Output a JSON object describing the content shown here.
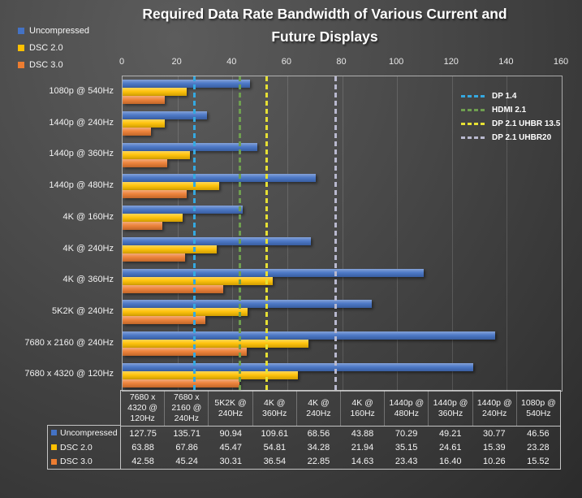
{
  "title": {
    "line1": "Required Data Rate Bandwidth of Various Current and",
    "line2": "Future Displays"
  },
  "series_legend": [
    {
      "label": "Uncompressed",
      "color": "#4472C4"
    },
    {
      "label": "DSC 2.0",
      "color": "#FFC000"
    },
    {
      "label": "DSC 3.0",
      "color": "#ED7D31"
    }
  ],
  "axis": {
    "ticks": [
      "0",
      "20",
      "40",
      "60",
      "80",
      "100",
      "120",
      "140",
      "160"
    ],
    "max": 160
  },
  "chart_data": {
    "type": "bar",
    "orientation": "horizontal",
    "title": "Required Data Rate Bandwidth of Various Current and Future Displays",
    "xlabel": "",
    "ylabel": "",
    "xlim": [
      0,
      160
    ],
    "grid": true,
    "legend_position": "top-right",
    "categories": [
      "1080p @ 540Hz",
      "1440p @ 240Hz",
      "1440p @ 360Hz",
      "1440p @ 480Hz",
      "4K @ 160Hz",
      "4K @ 240Hz",
      "4K @ 360Hz",
      "5K2K @ 240Hz",
      "7680 x 2160 @ 240Hz",
      "7680 x 4320 @ 120Hz"
    ],
    "series": [
      {
        "name": "Uncompressed",
        "color": "#4472C4",
        "values": [
          46.56,
          30.77,
          49.21,
          70.29,
          43.88,
          68.56,
          109.61,
          90.94,
          135.71,
          127.75
        ]
      },
      {
        "name": "DSC 2.0",
        "color": "#FFC000",
        "values": [
          23.28,
          15.39,
          24.61,
          35.15,
          21.94,
          34.28,
          54.81,
          45.47,
          67.86,
          63.88
        ]
      },
      {
        "name": "DSC 3.0",
        "color": "#ED7D31",
        "values": [
          15.52,
          10.26,
          16.4,
          23.43,
          14.63,
          22.85,
          36.54,
          30.31,
          45.24,
          42.58
        ]
      }
    ],
    "reference_lines": [
      {
        "label": "DP 1.4",
        "value": 25.92,
        "color": "#35A8E0"
      },
      {
        "label": "HDMI 2.1",
        "value": 42.67,
        "color": "#6F9E50"
      },
      {
        "label": "DP 2.1 UHBR 13.5",
        "value": 52.22,
        "color": "#E6E034"
      },
      {
        "label": "DP 2.1 UHBR20",
        "value": 77.37,
        "color": "#B9B9CF"
      }
    ]
  },
  "table": {
    "columns": [
      "7680 x 4320 @ 120Hz",
      "7680 x 2160 @ 240Hz",
      "5K2K @ 240Hz",
      "4K @ 360Hz",
      "4K @ 240Hz",
      "4K @ 160Hz",
      "1440p @ 480Hz",
      "1440p @ 360Hz",
      "1440p @ 240Hz",
      "1080p @ 540Hz"
    ],
    "rows": [
      {
        "name": "Uncompressed",
        "color": "#4472C4",
        "values": [
          "127.75",
          "135.71",
          "90.94",
          "109.61",
          "68.56",
          "43.88",
          "70.29",
          "49.21",
          "30.77",
          "46.56"
        ]
      },
      {
        "name": "DSC 2.0",
        "color": "#FFC000",
        "values": [
          "63.88",
          "67.86",
          "45.47",
          "54.81",
          "34.28",
          "21.94",
          "35.15",
          "24.61",
          "15.39",
          "23.28"
        ]
      },
      {
        "name": "DSC 3.0",
        "color": "#ED7D31",
        "values": [
          "42.58",
          "45.24",
          "30.31",
          "36.54",
          "22.85",
          "14.63",
          "23.43",
          "16.40",
          "10.26",
          "15.52"
        ]
      }
    ]
  }
}
